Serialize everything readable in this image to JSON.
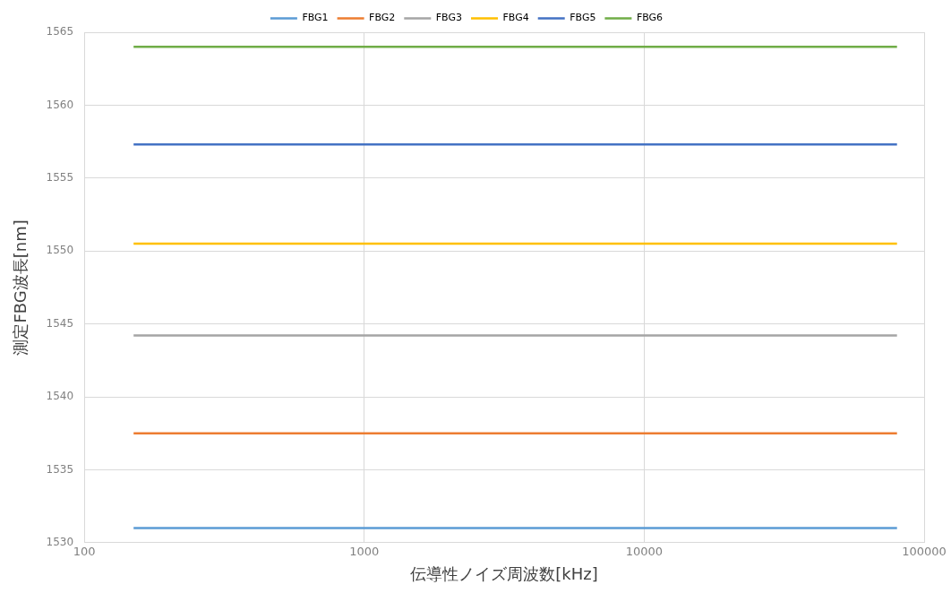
{
  "chart_data": {
    "type": "line",
    "xlabel": "伝導性ノイズ周波数[kHz]",
    "ylabel": "測定FBG波長[nm]",
    "x": [
      150,
      80000
    ],
    "series": [
      {
        "name": "FBG1",
        "color": "#5b9bd5",
        "values": [
          1531.0,
          1531.0
        ]
      },
      {
        "name": "FBG2",
        "color": "#ed7d31",
        "values": [
          1537.5,
          1537.5
        ]
      },
      {
        "name": "FBG3",
        "color": "#a5a5a5",
        "values": [
          1544.2,
          1544.2
        ]
      },
      {
        "name": "FBG4",
        "color": "#ffc000",
        "values": [
          1550.5,
          1550.5
        ]
      },
      {
        "name": "FBG5",
        "color": "#4472c4",
        "values": [
          1557.3,
          1557.3
        ]
      },
      {
        "name": "FBG6",
        "color": "#70ad47",
        "values": [
          1564.0,
          1564.0
        ]
      }
    ],
    "xlim": [
      100,
      100000
    ],
    "xticks": [
      100,
      1000,
      10000,
      100000
    ],
    "ylim": [
      1530,
      1565
    ],
    "yticks": [
      1530,
      1535,
      1540,
      1545,
      1550,
      1555,
      1560,
      1565
    ],
    "log": "x",
    "grid": true,
    "legend": "top",
    "marker": "none",
    "line_style": "solid"
  }
}
